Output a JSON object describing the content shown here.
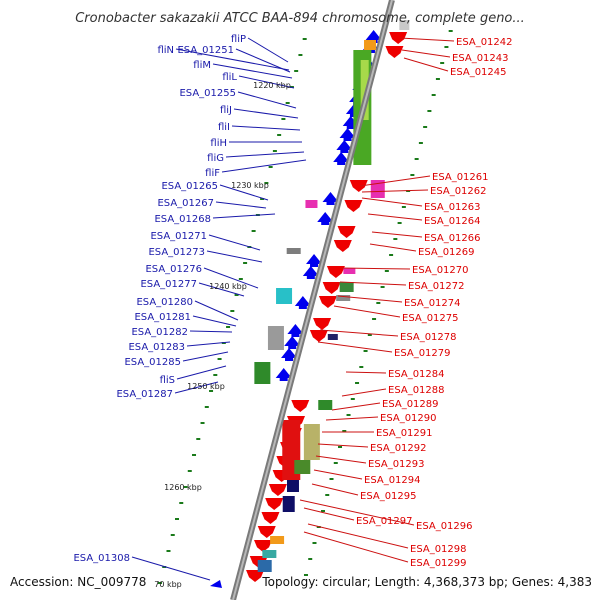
{
  "map": {
    "title": "Cronobacter sakazakii ATCC BAA-894 chromosome, complete geno...",
    "accession": "Accession: NC_009778",
    "topology": "Topology: circular; Length: 4,368,373 bp; Genes: 4,383",
    "colors": {
      "backbone": "#8a8a8a",
      "left_genes": "#0000ee",
      "left_labels": "#1a1aaa",
      "right_genes": "#ee0000",
      "right_labels": "#dd0000",
      "tick": "#1a7a1a"
    }
  },
  "scale_labels": [
    "1220 kbp",
    "1230 kbp",
    "1240 kbp",
    "1250 kbp",
    "1260 kbp",
    "70 kbp"
  ],
  "left_labels": [
    "fliP",
    "fliN",
    "ESA_01251",
    "fliM",
    "fliL",
    "ESA_01255",
    "fliJ",
    "fliI",
    "fliH",
    "fliG",
    "fliF",
    "ESA_01265",
    "ESA_01267",
    "ESA_01268",
    "ESA_01271",
    "ESA_01273",
    "ESA_01276",
    "ESA_01277",
    "ESA_01280",
    "ESA_01281",
    "ESA_01282",
    "ESA_01283",
    "ESA_01285",
    "fliS",
    "ESA_01287",
    "ESA_01308"
  ],
  "right_labels": [
    "ESA_01242",
    "ESA_01243",
    "ESA_01245",
    "ESA_01261",
    "ESA_01262",
    "ESA_01263",
    "ESA_01264",
    "ESA_01266",
    "ESA_01269",
    "ESA_01270",
    "ESA_01272",
    "ESA_01274",
    "ESA_01275",
    "ESA_01278",
    "ESA_01279",
    "ESA_01284",
    "ESA_01288",
    "ESA_01289",
    "ESA_01290",
    "ESA_01291",
    "ESA_01292",
    "ESA_01293",
    "ESA_01294",
    "ESA_01295",
    "ESA_01297",
    "ESA_01296",
    "ESA_01298",
    "ESA_01299"
  ]
}
